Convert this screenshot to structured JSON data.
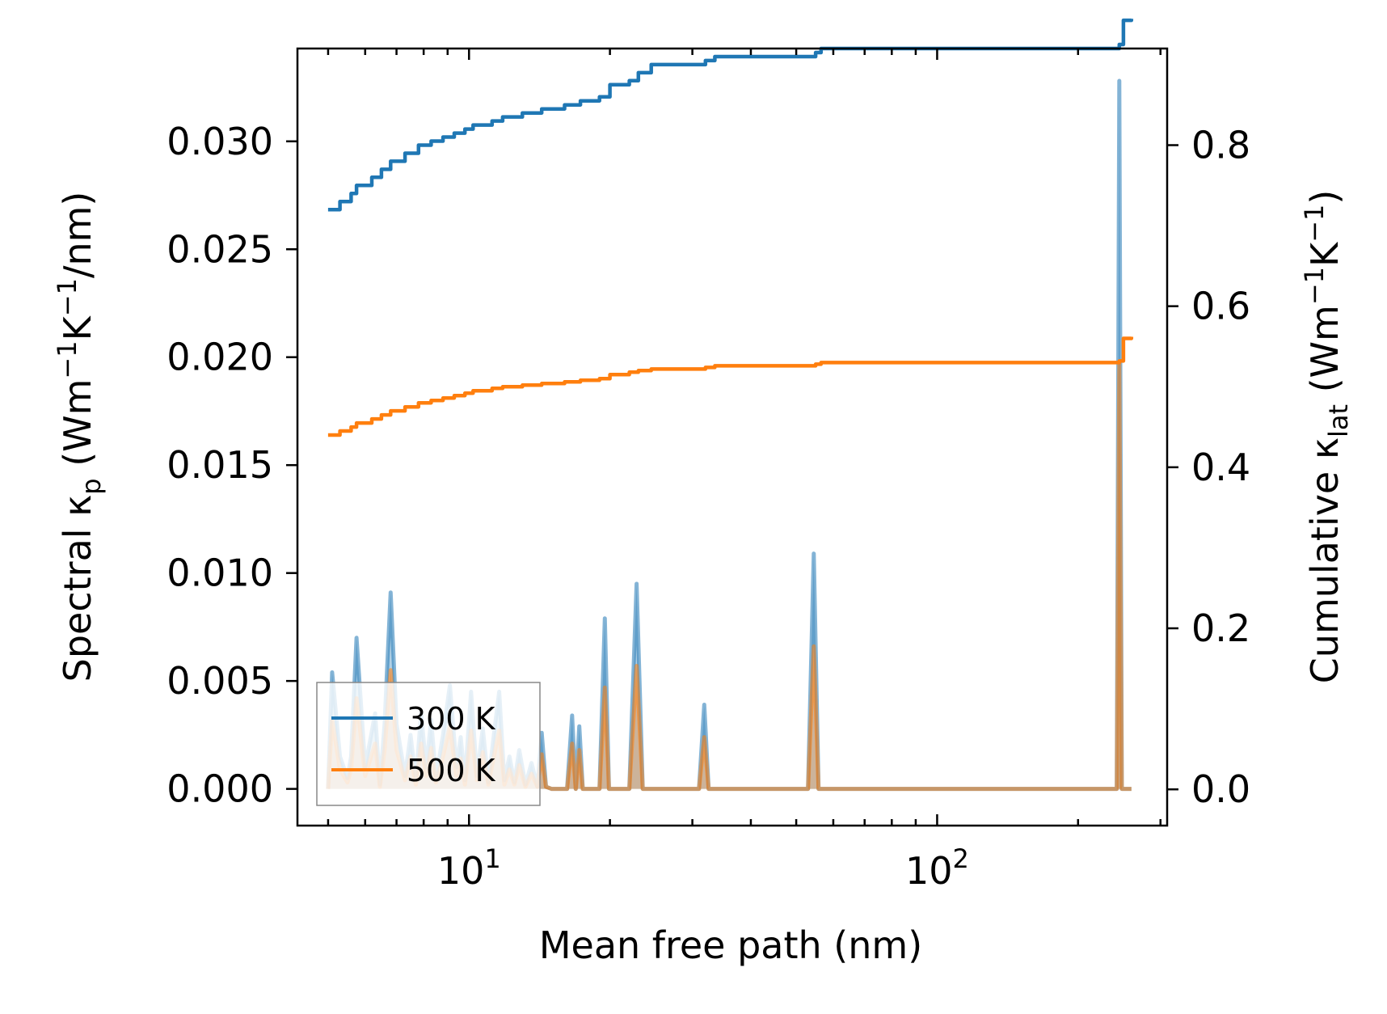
{
  "chart_data": {
    "type": "line",
    "title": "",
    "xlabel": "Mean free path (nm)",
    "x_scale": "log",
    "xlim": [
      4.3,
      310
    ],
    "x_ticks": [
      {
        "value": 10,
        "base": "10",
        "exp": "1"
      },
      {
        "value": 100,
        "base": "10",
        "exp": "2"
      }
    ],
    "left_axis": {
      "label": {
        "main": "Spectral κ",
        "sub": "p",
        "units_pre": " (Wm",
        "sup1": "−1",
        "mid": "K",
        "sup2": "−1",
        "units_post": "/nm)"
      },
      "ylim": [
        -0.0017,
        0.0343
      ],
      "ticks": [
        0.0,
        0.005,
        0.01,
        0.015,
        0.02,
        0.025,
        0.03
      ],
      "tick_labels": [
        "0.000",
        "0.005",
        "0.010",
        "0.015",
        "0.020",
        "0.025",
        "0.030"
      ]
    },
    "right_axis": {
      "label": {
        "main": "Cumulative κ",
        "sub": "lat",
        "units_pre": " (Wm",
        "sup1": "−1",
        "mid": "K",
        "sup2": "−1",
        "units_post": ")"
      },
      "ylim": [
        -0.045,
        0.92
      ],
      "ticks": [
        0.0,
        0.2,
        0.4,
        0.6,
        0.8
      ],
      "tick_labels": [
        "0.0",
        "0.2",
        "0.4",
        "0.6",
        "0.8"
      ]
    },
    "legend": {
      "position": "lower-left",
      "entries": [
        {
          "label": "300 K",
          "color": "#1f77b4"
        },
        {
          "label": "500 K",
          "color": "#ff7f0e"
        }
      ]
    },
    "series": [
      {
        "name": "300 K",
        "color": "#1f77b4",
        "axis": "right",
        "kind": "cumulative",
        "x": [
          5.0,
          5.3,
          5.6,
          5.75,
          6.2,
          6.5,
          6.8,
          7.3,
          7.8,
          8.3,
          8.8,
          9.3,
          9.8,
          10.2,
          11.2,
          11.8,
          13.0,
          14.3,
          16.0,
          17.3,
          19.0,
          20.0,
          22.0,
          23.0,
          24.5,
          32.0,
          33.5,
          55.0,
          56.5,
          245.0,
          250.0,
          260.0
        ],
        "y": [
          0.72,
          0.73,
          0.74,
          0.75,
          0.76,
          0.77,
          0.78,
          0.79,
          0.8,
          0.805,
          0.81,
          0.815,
          0.82,
          0.825,
          0.83,
          0.835,
          0.84,
          0.845,
          0.85,
          0.855,
          0.86,
          0.875,
          0.88,
          0.89,
          0.9,
          0.905,
          0.91,
          0.915,
          0.92,
          0.925,
          0.955,
          0.957
        ]
      },
      {
        "name": "500 K",
        "color": "#ff7f0e",
        "axis": "right",
        "kind": "cumulative",
        "x": [
          5.0,
          5.3,
          5.6,
          5.75,
          6.2,
          6.5,
          6.8,
          7.3,
          7.8,
          8.3,
          8.8,
          9.3,
          9.8,
          10.2,
          11.2,
          11.8,
          13.0,
          14.3,
          16.0,
          17.3,
          19.0,
          20.0,
          22.0,
          23.0,
          24.5,
          32.0,
          33.5,
          55.0,
          56.5,
          245.0,
          250.0,
          260.0
        ],
        "y": [
          0.44,
          0.445,
          0.45,
          0.455,
          0.46,
          0.465,
          0.47,
          0.475,
          0.48,
          0.483,
          0.486,
          0.489,
          0.492,
          0.495,
          0.498,
          0.5,
          0.502,
          0.504,
          0.506,
          0.508,
          0.51,
          0.515,
          0.518,
          0.52,
          0.522,
          0.524,
          0.526,
          0.528,
          0.53,
          0.532,
          0.56,
          0.562
        ]
      },
      {
        "name": "300 K",
        "color": "#1f77b4",
        "axis": "left",
        "kind": "spectral",
        "x": [
          5.0,
          5.1,
          5.3,
          5.5,
          5.6,
          5.75,
          6.0,
          6.3,
          6.45,
          6.6,
          6.8,
          7.0,
          7.3,
          7.5,
          7.7,
          7.9,
          8.1,
          8.3,
          8.5,
          8.8,
          9.1,
          9.4,
          9.6,
          9.8,
          10.1,
          10.4,
          10.7,
          11.0,
          11.3,
          11.6,
          11.9,
          12.2,
          12.5,
          12.8,
          13.2,
          13.6,
          14.0,
          14.3,
          14.6,
          15.0,
          15.5,
          16.2,
          16.6,
          16.9,
          17.2,
          17.5,
          17.8,
          18.2,
          19.0,
          19.5,
          19.9,
          20.3,
          20.8,
          22.0,
          22.8,
          23.5,
          24.2,
          25.0,
          31.0,
          31.8,
          32.5,
          33.5,
          53.0,
          54.5,
          55.8,
          57.0,
          58.5,
          242.0,
          245.0,
          248.0,
          250.0,
          255.0,
          260.0
        ],
        "y": [
          0.0,
          0.0054,
          0.0015,
          0.0005,
          0.0015,
          0.007,
          0.001,
          0.0035,
          0.0002,
          0.003,
          0.0091,
          0.003,
          0.0006,
          0.0025,
          0.0004,
          0.0035,
          0.001,
          0.0032,
          0.0005,
          0.0025,
          0.0048,
          0.001,
          0.0024,
          0.0004,
          0.0045,
          0.0006,
          0.0028,
          0.0003,
          0.0025,
          0.0045,
          0.0004,
          0.0015,
          0.0003,
          0.0018,
          0.0002,
          0.0012,
          0.0001,
          0.0026,
          0.0001,
          0.0,
          0.0,
          0.0,
          0.0034,
          0.0,
          0.0029,
          0.0,
          0.0,
          0.0,
          0.0,
          0.0079,
          0.0,
          0.0,
          0.0,
          0.0,
          0.0095,
          0.0,
          0.0,
          0.0,
          0.0,
          0.0039,
          0.0,
          0.0,
          0.0,
          0.0109,
          0.0,
          0.0,
          0.0,
          0.0,
          0.0328,
          0.0,
          0.0,
          0.0,
          0.0
        ]
      },
      {
        "name": "500 K",
        "color": "#ff7f0e",
        "axis": "left",
        "kind": "spectral",
        "x": [
          5.0,
          5.1,
          5.3,
          5.5,
          5.6,
          5.75,
          6.0,
          6.3,
          6.45,
          6.6,
          6.8,
          7.0,
          7.3,
          7.5,
          7.7,
          7.9,
          8.1,
          8.3,
          8.5,
          8.8,
          9.1,
          9.4,
          9.6,
          9.8,
          10.1,
          10.4,
          10.7,
          11.0,
          11.3,
          11.6,
          11.9,
          12.2,
          12.5,
          12.8,
          13.2,
          13.6,
          14.0,
          14.3,
          14.6,
          15.0,
          15.5,
          16.2,
          16.6,
          16.9,
          17.2,
          17.5,
          17.8,
          18.2,
          19.0,
          19.5,
          19.9,
          20.3,
          20.8,
          22.0,
          22.8,
          23.5,
          24.2,
          25.0,
          31.0,
          31.8,
          32.5,
          33.5,
          53.0,
          54.5,
          55.8,
          57.0,
          58.5,
          242.0,
          245.0,
          248.0,
          250.0,
          255.0,
          260.0
        ],
        "y": [
          0.0,
          0.0032,
          0.0009,
          0.0003,
          0.0009,
          0.0042,
          0.0006,
          0.0021,
          0.0001,
          0.0018,
          0.0055,
          0.0018,
          0.0004,
          0.0015,
          0.0002,
          0.0021,
          0.0006,
          0.0019,
          0.0003,
          0.0015,
          0.0029,
          0.0006,
          0.0014,
          0.0002,
          0.0027,
          0.0004,
          0.0017,
          0.0002,
          0.0015,
          0.0027,
          0.0002,
          0.0009,
          0.0002,
          0.0011,
          0.0001,
          0.0007,
          0.0001,
          0.0016,
          0.0001,
          0.0,
          0.0,
          0.0,
          0.0021,
          0.0,
          0.0018,
          0.0,
          0.0,
          0.0,
          0.0,
          0.0047,
          0.0,
          0.0,
          0.0,
          0.0,
          0.0057,
          0.0,
          0.0,
          0.0,
          0.0,
          0.0024,
          0.0,
          0.0,
          0.0,
          0.0066,
          0.0,
          0.0,
          0.0,
          0.0,
          0.0197,
          0.0,
          0.0,
          0.0,
          0.0
        ]
      }
    ]
  }
}
